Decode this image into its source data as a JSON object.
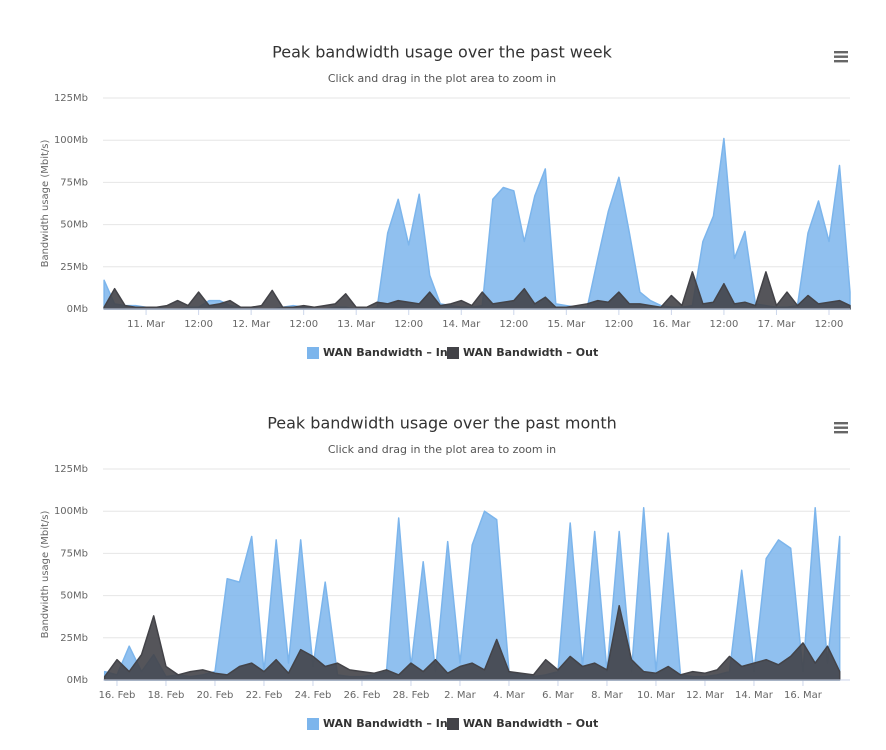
{
  "chart_data": [
    {
      "type": "area",
      "title": "Peak bandwidth usage over the past week",
      "subtitle": "Click and drag in the plot area to zoom in",
      "y_axis_label": "Bandwidth usage (Mbit/s)",
      "x": [
        10.6,
        10.7,
        10.8,
        10.9,
        11.0,
        11.1,
        11.2,
        11.3,
        11.4,
        11.5,
        11.6,
        11.7,
        11.8,
        11.9,
        12.0,
        12.1,
        12.2,
        12.3,
        12.4,
        12.5,
        12.6,
        12.7,
        12.8,
        12.9,
        13.0,
        13.1,
        13.2,
        13.3,
        13.4,
        13.5,
        13.6,
        13.7,
        13.8,
        13.9,
        14.0,
        14.1,
        14.2,
        14.3,
        14.4,
        14.5,
        14.6,
        14.7,
        14.8,
        14.9,
        15.0,
        15.1,
        15.2,
        15.3,
        15.4,
        15.5,
        15.6,
        15.7,
        15.8,
        15.9,
        16.0,
        16.1,
        16.2,
        16.3,
        16.4,
        16.5,
        16.6,
        16.7,
        16.8,
        16.9,
        17.0,
        17.1,
        17.2,
        17.3,
        17.4,
        17.5,
        17.6,
        17.7
      ],
      "series": [
        {
          "name": "WAN Bandwidth – In",
          "color": "#7cb5ec",
          "values": [
            17,
            3,
            2,
            2,
            1,
            1,
            0,
            0,
            1,
            1,
            5,
            5,
            2,
            1,
            1,
            0,
            0,
            1,
            2,
            1,
            0,
            0,
            1,
            1,
            0,
            0,
            1,
            45,
            65,
            38,
            68,
            20,
            3,
            2,
            1,
            1,
            2,
            65,
            72,
            70,
            40,
            67,
            83,
            3,
            2,
            1,
            1,
            30,
            58,
            78,
            45,
            10,
            5,
            2,
            1,
            1,
            2,
            40,
            55,
            101,
            30,
            46,
            3,
            2,
            1,
            1,
            2,
            45,
            64,
            40,
            85,
            10
          ]
        },
        {
          "name": "WAN Bandwidth – Out",
          "color": "#434348",
          "values": [
            1,
            12,
            2,
            1,
            1,
            1,
            2,
            5,
            2,
            10,
            2,
            3,
            5,
            1,
            1,
            2,
            11,
            1,
            1,
            2,
            1,
            2,
            3,
            9,
            1,
            1,
            4,
            3,
            5,
            4,
            3,
            10,
            2,
            3,
            5,
            2,
            10,
            3,
            4,
            5,
            12,
            3,
            7,
            1,
            1,
            2,
            3,
            5,
            4,
            10,
            3,
            3,
            2,
            1,
            8,
            2,
            22,
            3,
            4,
            15,
            3,
            4,
            2,
            22,
            2,
            10,
            2,
            8,
            3,
            4,
            5,
            2
          ]
        }
      ],
      "xlim": [
        10.59,
        17.7
      ],
      "xticks": [
        {
          "value": 11,
          "label": "11. Mar"
        },
        {
          "value": 11.5,
          "label": "12:00"
        },
        {
          "value": 12,
          "label": "12. Mar"
        },
        {
          "value": 12.5,
          "label": "12:00"
        },
        {
          "value": 13,
          "label": "13. Mar"
        },
        {
          "value": 13.5,
          "label": "12:00"
        },
        {
          "value": 14,
          "label": "14. Mar"
        },
        {
          "value": 14.5,
          "label": "12:00"
        },
        {
          "value": 15,
          "label": "15. Mar"
        },
        {
          "value": 15.5,
          "label": "12:00"
        },
        {
          "value": 16,
          "label": "16. Mar"
        },
        {
          "value": 16.5,
          "label": "12:00"
        },
        {
          "value": 17,
          "label": "17. Mar"
        },
        {
          "value": 17.5,
          "label": "12:00"
        }
      ],
      "ylim": [
        0,
        125
      ],
      "yticks": [
        {
          "value": 0,
          "label": "0Mb"
        },
        {
          "value": 25,
          "label": "25Mb"
        },
        {
          "value": 50,
          "label": "50Mb"
        },
        {
          "value": 75,
          "label": "75Mb"
        },
        {
          "value": 100,
          "label": "100Mb"
        },
        {
          "value": 125,
          "label": "125Mb"
        }
      ],
      "grid": true,
      "legend": "bottom"
    },
    {
      "type": "area",
      "title": "Peak bandwidth usage over the past month",
      "subtitle": "Click and drag in the plot area to zoom in",
      "y_axis_label": "Bandwidth usage (Mbit/s)",
      "x": [
        15.5,
        16,
        16.5,
        17,
        17.5,
        18,
        18.5,
        19,
        19.5,
        20,
        20.5,
        21,
        21.5,
        22,
        22.5,
        23,
        23.5,
        24,
        24.5,
        25,
        25.5,
        26,
        26.5,
        27,
        27.5,
        28,
        28.5,
        29,
        29.5,
        30,
        30.5,
        31,
        31.5,
        32,
        32.5,
        33,
        33.5,
        34,
        34.5,
        35,
        35.5,
        36,
        36.5,
        37,
        37.5,
        38,
        38.5,
        39,
        39.5,
        40,
        40.5,
        41,
        41.5,
        42,
        42.5,
        43,
        43.5,
        44,
        44.5,
        45,
        45.5
      ],
      "series": [
        {
          "name": "WAN Bandwidth – In",
          "color": "#7cb5ec",
          "values": [
            5,
            3,
            20,
            5,
            15,
            2,
            3,
            2,
            3,
            5,
            60,
            58,
            85,
            5,
            83,
            10,
            83,
            8,
            58,
            3,
            2,
            2,
            3,
            5,
            96,
            8,
            70,
            5,
            82,
            10,
            80,
            100,
            95,
            5,
            3,
            2,
            3,
            5,
            93,
            8,
            88,
            5,
            88,
            5,
            102,
            5,
            87,
            3,
            2,
            2,
            3,
            5,
            65,
            5,
            72,
            83,
            78,
            5,
            102,
            10,
            85
          ]
        },
        {
          "name": "WAN Bandwidth – Out",
          "color": "#434348",
          "values": [
            2,
            12,
            5,
            15,
            38,
            8,
            3,
            5,
            6,
            4,
            3,
            8,
            10,
            5,
            12,
            4,
            18,
            14,
            8,
            10,
            6,
            5,
            4,
            6,
            3,
            10,
            5,
            12,
            4,
            8,
            10,
            6,
            24,
            5,
            4,
            3,
            12,
            6,
            14,
            8,
            10,
            6,
            44,
            12,
            5,
            4,
            8,
            3,
            5,
            4,
            6,
            14,
            8,
            10,
            12,
            9,
            14,
            22,
            10,
            20,
            5
          ]
        }
      ],
      "xlim": [
        15.43,
        45.92
      ],
      "xticks": [
        {
          "value": 16,
          "label": "16. Feb"
        },
        {
          "value": 18,
          "label": "18. Feb"
        },
        {
          "value": 20,
          "label": "20. Feb"
        },
        {
          "value": 22,
          "label": "22. Feb"
        },
        {
          "value": 24,
          "label": "24. Feb"
        },
        {
          "value": 26,
          "label": "26. Feb"
        },
        {
          "value": 28,
          "label": "28. Feb"
        },
        {
          "value": 30,
          "label": "2. Mar"
        },
        {
          "value": 32,
          "label": "4. Mar"
        },
        {
          "value": 34,
          "label": "6. Mar"
        },
        {
          "value": 36,
          "label": "8. Mar"
        },
        {
          "value": 38,
          "label": "10. Mar"
        },
        {
          "value": 40,
          "label": "12. Mar"
        },
        {
          "value": 42,
          "label": "14. Mar"
        },
        {
          "value": 44,
          "label": "16. Mar"
        }
      ],
      "ylim": [
        0,
        125
      ],
      "yticks": [
        {
          "value": 0,
          "label": "0Mb"
        },
        {
          "value": 25,
          "label": "25Mb"
        },
        {
          "value": 50,
          "label": "50Mb"
        },
        {
          "value": 75,
          "label": "75Mb"
        },
        {
          "value": 100,
          "label": "100Mb"
        },
        {
          "value": 125,
          "label": "125Mb"
        }
      ],
      "grid": true,
      "legend": "bottom"
    }
  ]
}
